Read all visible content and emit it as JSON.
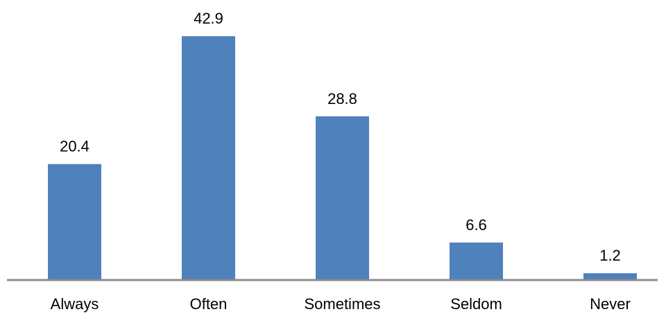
{
  "chart_data": {
    "type": "bar",
    "categories": [
      "Always",
      "Often",
      "Sometimes",
      "Seldom",
      "Never"
    ],
    "values": [
      20.4,
      42.9,
      28.8,
      6.6,
      1.2
    ],
    "data_labels": [
      "20.4",
      "42.9",
      "28.8",
      "6.6",
      "1.2"
    ],
    "title": "",
    "xlabel": "",
    "ylabel": "",
    "ylim": [
      0,
      45
    ],
    "grid": false,
    "legend": "none",
    "colors": {
      "bar": "#4f81bd",
      "axis": "#8c8c8c",
      "text": "#000000"
    }
  }
}
